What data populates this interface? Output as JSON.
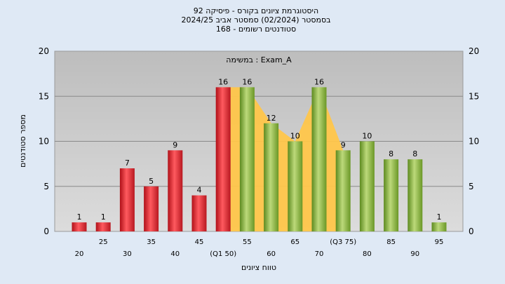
{
  "header": {
    "line1": "היסטוגרמת ציונים בקורס - פיסיקה 92",
    "line2": "בסמסטר  (02/2024)  סמסטר אביב 2024/25",
    "line3": "סטודנטים רשומים - 168"
  },
  "chart_data": {
    "type": "bar",
    "title": "היסטוגרמת ציונים בקורס - פיסיקה 92",
    "annotation": "במשימה : Exam_A",
    "xlabel": "טווח ציונים",
    "ylabel": "מספר סטודנטים",
    "ylim": [
      0,
      20
    ],
    "yticks": [
      0,
      5,
      10,
      15,
      20
    ],
    "grid": true,
    "categories": [
      "20",
      "25",
      "30",
      "35",
      "40",
      "45",
      "(Q1 50)",
      "55",
      "60",
      "65",
      "70",
      "(Q3 75)",
      "80",
      "85",
      "90",
      "95"
    ],
    "values": [
      1,
      1,
      7,
      5,
      9,
      4,
      16,
      16,
      12,
      10,
      16,
      9,
      10,
      8,
      8,
      1
    ],
    "bar_colors": [
      "red",
      "red",
      "red",
      "red",
      "red",
      "red",
      "red",
      "green",
      "green",
      "green",
      "green",
      "green",
      "green",
      "green",
      "green",
      "green"
    ],
    "colors": {
      "red": "#e8232b",
      "green": "#8fba3c",
      "iqr_area": "#ffc64a",
      "plot_bg": "#c6c6c6",
      "page_bg": "#dfe9f5"
    }
  }
}
